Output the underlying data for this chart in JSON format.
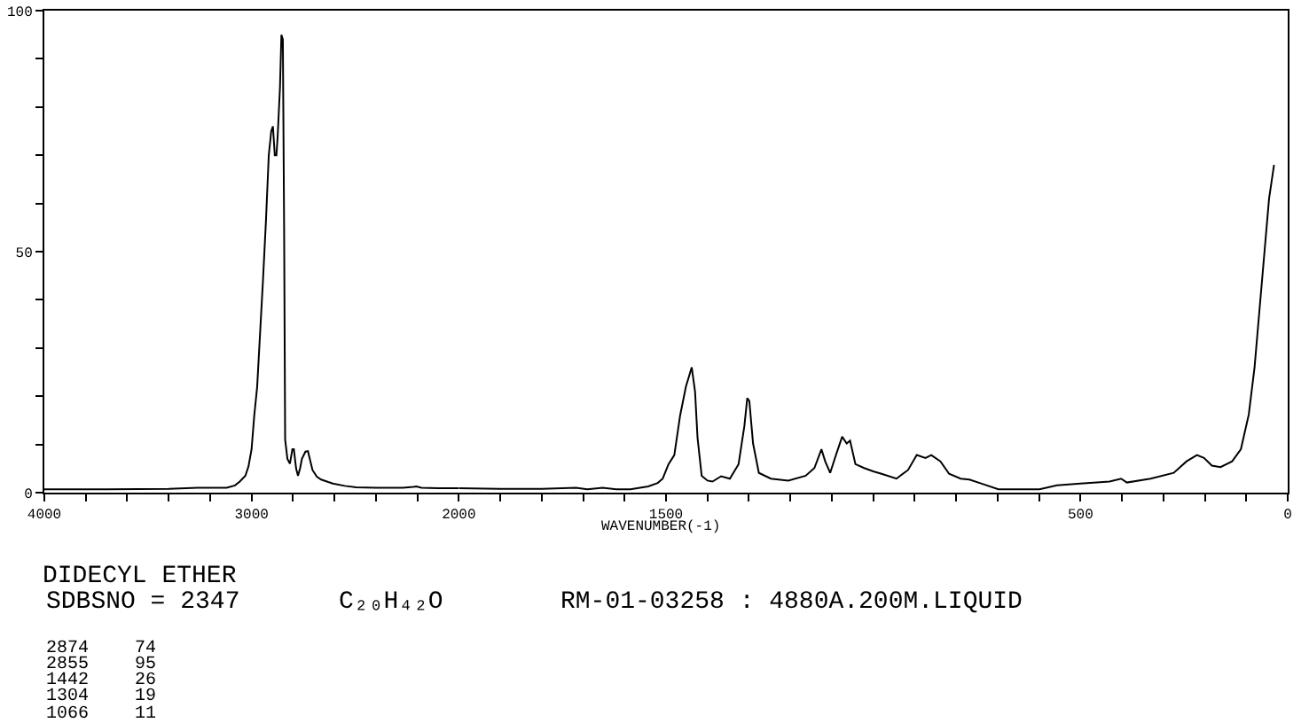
{
  "chart_data": [
    {
      "type": "line",
      "title": "DIDECYL ETHER",
      "annotations": [
        "SDBSNO = 2347",
        "C₂₀H₄₂O",
        "RM-01-03258 : 4880A.200M.LIQUID",
        "2874  74",
        "2855  95",
        "1442  26",
        "1304  19",
        "1066  11"
      ],
      "x": [
        4000,
        3700,
        3400,
        3260,
        3120,
        3080,
        3057,
        3030,
        3015,
        3000,
        2987,
        2973,
        2959,
        2945,
        2931,
        2917,
        2905,
        2897,
        2888,
        2880,
        2874,
        2863,
        2856,
        2849,
        2843,
        2838,
        2827,
        2815,
        2803,
        2796,
        2785,
        2776,
        2766,
        2757,
        2740,
        2728,
        2716,
        2706,
        2685,
        2664,
        2630,
        2608,
        2550,
        2495,
        2400,
        2270,
        2220,
        2205,
        2180,
        2100,
        2000
      ],
      "series": [
        {
          "color": "#000000",
          "values": [
            0.7,
            0.7,
            0.8,
            1.0,
            1.0,
            1.5,
            2.3,
            3.5,
            5.4,
            9,
            16,
            22,
            33,
            44,
            56,
            70,
            75,
            76,
            70,
            70,
            74,
            84,
            95,
            94,
            55,
            11,
            7,
            6,
            9,
            9,
            5,
            3.5,
            5,
            7,
            8.5,
            8.6,
            6.5,
            4.7,
            3.3,
            2.7,
            2.2,
            1.9,
            1.4,
            1.1,
            1.0,
            1.0,
            1.2,
            1.3,
            1.0,
            0.9,
            0.9
          ]
        }
      ],
      "xlim": [
        4000,
        2000
      ],
      "xticks": [
        4000,
        {
          "value": 3800,
          "label": null
        },
        {
          "value": 3600,
          "label": null
        },
        {
          "value": 3400,
          "label": null
        },
        {
          "value": 3200,
          "label": null
        },
        3000,
        {
          "value": 2800,
          "label": null
        },
        {
          "value": 2600,
          "label": null
        },
        {
          "value": 2400,
          "label": null
        },
        {
          "value": 2200,
          "label": null
        },
        2000
      ],
      "ylim": [
        0,
        100
      ],
      "yticks": [
        0,
        {
          "value": 10,
          "label": null
        },
        {
          "value": 20,
          "label": null
        },
        {
          "value": 30,
          "label": null
        },
        {
          "value": 40,
          "label": null
        },
        50,
        {
          "value": 60,
          "label": null
        },
        {
          "value": 70,
          "label": null
        },
        {
          "value": 80,
          "label": null
        },
        {
          "value": 90,
          "label": null
        },
        100
      ],
      "grid": false
    },
    {
      "type": "line",
      "xlabel": "WAVENUMBER(-1)",
      "x": [
        2000,
        1900,
        1800,
        1717,
        1690,
        1653,
        1620,
        1586,
        1543,
        1520,
        1508,
        1494,
        1480,
        1466,
        1452,
        1445,
        1438,
        1430,
        1424,
        1414,
        1400,
        1388,
        1367,
        1346,
        1325,
        1311,
        1304,
        1299,
        1290,
        1276,
        1247,
        1205,
        1163,
        1142,
        1125,
        1116,
        1104,
        1090,
        1075,
        1064,
        1056,
        1043,
        1022,
        1000,
        980,
        944,
        916,
        895,
        874,
        860,
        838,
        817,
        789,
        768,
        740,
        698,
        599,
        557,
        500,
        430,
        402,
        388,
        331,
        275,
        244,
        219,
        202,
        183,
        162,
        134,
        113,
        94,
        80,
        68,
        56,
        45,
        33
      ],
      "series": [
        {
          "color": "#000000",
          "values": [
            0.9,
            0.8,
            0.8,
            1.0,
            0.7,
            1.0,
            0.7,
            0.7,
            1.3,
            2,
            2.9,
            5.9,
            7.8,
            16,
            22,
            24,
            26,
            21,
            11.4,
            3.5,
            2.5,
            2.3,
            3.4,
            2.9,
            5.9,
            13.8,
            19.6,
            19,
            10.2,
            4.1,
            2.9,
            2.5,
            3.5,
            5.1,
            9.0,
            6.5,
            4.1,
            7.8,
            11.6,
            10.2,
            10.8,
            5.9,
            5.1,
            4.4,
            3.9,
            2.9,
            4.7,
            7.8,
            7.2,
            7.8,
            6.5,
            3.9,
            2.9,
            2.7,
            1.9,
            0.7,
            0.7,
            1.5,
            1.9,
            2.3,
            2.9,
            2.1,
            2.9,
            4.1,
            6.5,
            7.8,
            7.2,
            5.6,
            5.3,
            6.5,
            9.0,
            16.2,
            26,
            38,
            50,
            61,
            68
          ]
        }
      ],
      "xlim": [
        2000,
        0
      ],
      "xticks": [
        {
          "value": 1900,
          "label": null
        },
        {
          "value": 1800,
          "label": null
        },
        {
          "value": 1700,
          "label": null
        },
        {
          "value": 1600,
          "label": null
        },
        1500,
        {
          "value": 1400,
          "label": null
        },
        {
          "value": 1300,
          "label": null
        },
        {
          "value": 1200,
          "label": null
        },
        {
          "value": 1100,
          "label": null
        },
        {
          "value": 1000,
          "label": null
        },
        {
          "value": 900,
          "label": null
        },
        {
          "value": 800,
          "label": null
        },
        {
          "value": 700,
          "label": null
        },
        {
          "value": 600,
          "label": null
        },
        500,
        {
          "value": 400,
          "label": null
        },
        {
          "value": 300,
          "label": null
        },
        {
          "value": 200,
          "label": null
        },
        {
          "value": 100,
          "label": null
        },
        0
      ],
      "ylim": [
        0,
        100
      ],
      "tick_labels": "x",
      "grid": false
    }
  ]
}
